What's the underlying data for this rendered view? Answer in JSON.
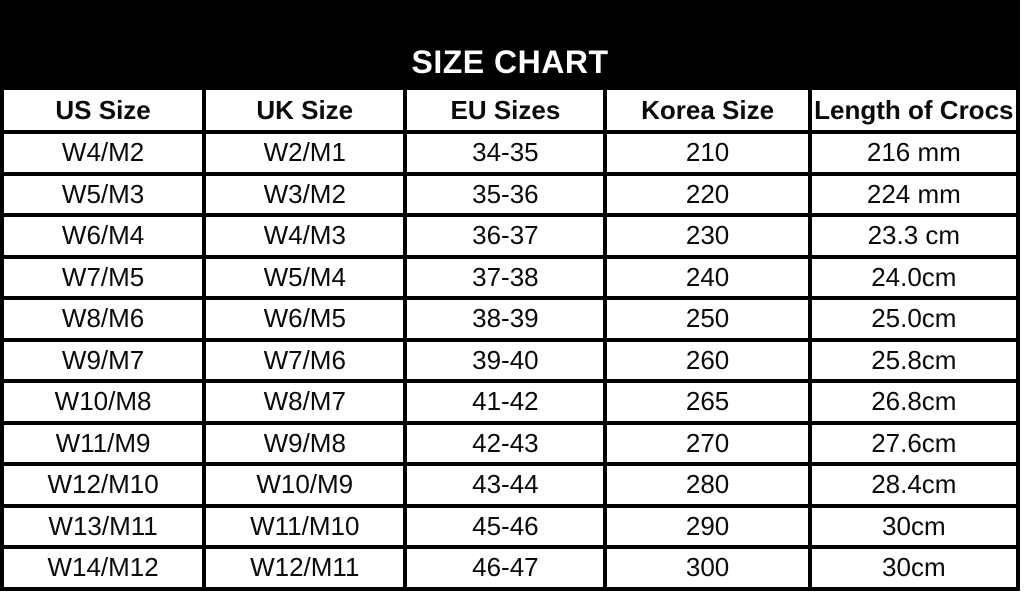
{
  "chart_data": {
    "type": "table",
    "title": "SIZE CHART",
    "columns": [
      "US Size",
      "UK Size",
      "EU Sizes",
      "Korea Size",
      "Length of Crocs"
    ],
    "rows": [
      [
        "W4/M2",
        "W2/M1",
        "34-35",
        "210",
        "216 mm"
      ],
      [
        "W5/M3",
        "W3/M2",
        "35-36",
        "220",
        "224 mm"
      ],
      [
        "W6/M4",
        "W4/M3",
        "36-37",
        "230",
        "23.3 cm"
      ],
      [
        "W7/M5",
        "W5/M4",
        "37-38",
        "240",
        "24.0cm"
      ],
      [
        "W8/M6",
        "W6/M5",
        "38-39",
        "250",
        "25.0cm"
      ],
      [
        "W9/M7",
        "W7/M6",
        "39-40",
        "260",
        "25.8cm"
      ],
      [
        "W10/M8",
        "W8/M7",
        "41-42",
        "265",
        "26.8cm"
      ],
      [
        "W11/M9",
        "W9/M8",
        "42-43",
        "270",
        "27.6cm"
      ],
      [
        "W12/M10",
        "W10/M9",
        "43-44",
        "280",
        "28.4cm"
      ],
      [
        "W13/M11",
        "W11/M10",
        "45-46",
        "290",
        "30cm"
      ],
      [
        "W14/M12",
        "W12/M11",
        "46-47",
        "300",
        "30cm"
      ]
    ],
    "layout": {
      "header_band": "black, title bottom-aligned, centered",
      "grid": "on, black 4px lines",
      "columns_equal_width": true
    }
  },
  "colors": {
    "band_background": "#000000",
    "band_text": "#ffffff",
    "border": "#000000",
    "cell_background": "#ffffff",
    "cell_text": "#0a0a0a"
  }
}
